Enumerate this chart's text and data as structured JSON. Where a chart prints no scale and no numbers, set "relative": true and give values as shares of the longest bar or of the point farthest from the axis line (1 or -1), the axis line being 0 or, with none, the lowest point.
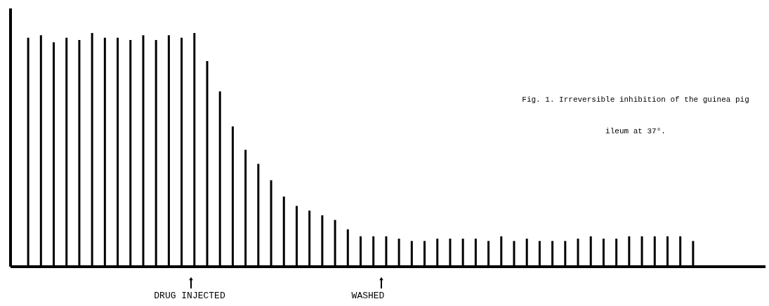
{
  "chart_data": {
    "type": "bar",
    "relative": true,
    "title": "Fig. 1.  Irreversible inhibition of the guinea pig ileum at 37°.",
    "categories": [
      null,
      null,
      null,
      null,
      null,
      null,
      null,
      null,
      null,
      null,
      null,
      null,
      null,
      null,
      null,
      null,
      null,
      null,
      null,
      null,
      null,
      null,
      null,
      null,
      null,
      null,
      null,
      null,
      null,
      null,
      null,
      null,
      null,
      null,
      null,
      null,
      null,
      null,
      null,
      null,
      null,
      null,
      null,
      null,
      null,
      null,
      null,
      null,
      null,
      null,
      null,
      null,
      null
    ],
    "values": [
      0.98,
      0.99,
      0.96,
      0.98,
      0.97,
      1.0,
      0.98,
      0.98,
      0.97,
      0.99,
      0.97,
      0.99,
      0.98,
      1.0,
      0.88,
      0.75,
      0.6,
      0.5,
      0.44,
      0.37,
      0.3,
      0.26,
      0.24,
      0.22,
      0.2,
      0.16,
      0.13,
      0.13,
      0.13,
      0.12,
      0.11,
      0.11,
      0.12,
      0.12,
      0.12,
      0.12,
      0.11,
      0.13,
      0.11,
      0.12,
      0.11,
      0.11,
      0.11,
      0.12,
      0.13,
      0.12,
      0.12,
      0.13,
      0.13,
      0.13,
      0.13,
      0.13,
      0.11
    ],
    "color": "#000000",
    "annotations": [
      "DRUG INJECTED",
      "WASHED"
    ]
  }
}
